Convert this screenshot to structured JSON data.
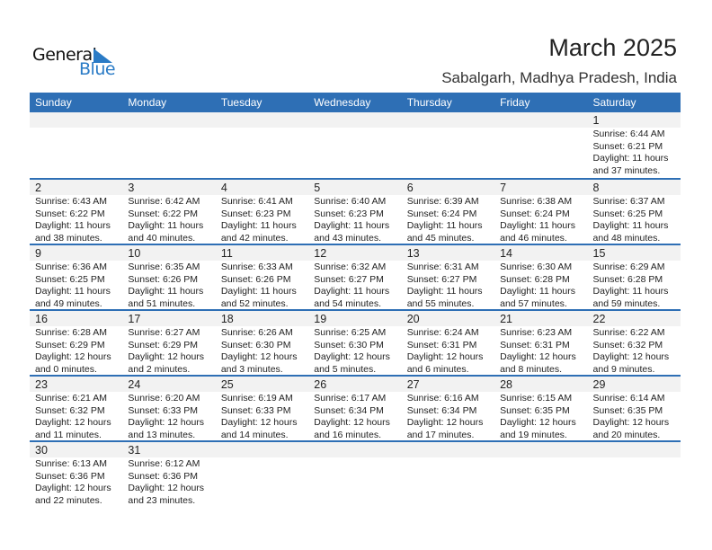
{
  "logo": {
    "text_general": "General",
    "text_blue": "Blue"
  },
  "header": {
    "title": "March 2025",
    "location": "Sabalgarh, Madhya Pradesh, India"
  },
  "colors": {
    "accent": "#2e6fb5",
    "day_strip": "#f2f2f2",
    "logo_blue": "#2a7bc6"
  },
  "weekdays": [
    "Sunday",
    "Monday",
    "Tuesday",
    "Wednesday",
    "Thursday",
    "Friday",
    "Saturday"
  ],
  "weeks": [
    [
      null,
      null,
      null,
      null,
      null,
      null,
      {
        "day": "1",
        "sunrise": "Sunrise: 6:44 AM",
        "sunset": "Sunset: 6:21 PM",
        "daylight": "Daylight: 11 hours",
        "minutes": "and 37 minutes."
      }
    ],
    [
      {
        "day": "2",
        "sunrise": "Sunrise: 6:43 AM",
        "sunset": "Sunset: 6:22 PM",
        "daylight": "Daylight: 11 hours",
        "minutes": "and 38 minutes."
      },
      {
        "day": "3",
        "sunrise": "Sunrise: 6:42 AM",
        "sunset": "Sunset: 6:22 PM",
        "daylight": "Daylight: 11 hours",
        "minutes": "and 40 minutes."
      },
      {
        "day": "4",
        "sunrise": "Sunrise: 6:41 AM",
        "sunset": "Sunset: 6:23 PM",
        "daylight": "Daylight: 11 hours",
        "minutes": "and 42 minutes."
      },
      {
        "day": "5",
        "sunrise": "Sunrise: 6:40 AM",
        "sunset": "Sunset: 6:23 PM",
        "daylight": "Daylight: 11 hours",
        "minutes": "and 43 minutes."
      },
      {
        "day": "6",
        "sunrise": "Sunrise: 6:39 AM",
        "sunset": "Sunset: 6:24 PM",
        "daylight": "Daylight: 11 hours",
        "minutes": "and 45 minutes."
      },
      {
        "day": "7",
        "sunrise": "Sunrise: 6:38 AM",
        "sunset": "Sunset: 6:24 PM",
        "daylight": "Daylight: 11 hours",
        "minutes": "and 46 minutes."
      },
      {
        "day": "8",
        "sunrise": "Sunrise: 6:37 AM",
        "sunset": "Sunset: 6:25 PM",
        "daylight": "Daylight: 11 hours",
        "minutes": "and 48 minutes."
      }
    ],
    [
      {
        "day": "9",
        "sunrise": "Sunrise: 6:36 AM",
        "sunset": "Sunset: 6:25 PM",
        "daylight": "Daylight: 11 hours",
        "minutes": "and 49 minutes."
      },
      {
        "day": "10",
        "sunrise": "Sunrise: 6:35 AM",
        "sunset": "Sunset: 6:26 PM",
        "daylight": "Daylight: 11 hours",
        "minutes": "and 51 minutes."
      },
      {
        "day": "11",
        "sunrise": "Sunrise: 6:33 AM",
        "sunset": "Sunset: 6:26 PM",
        "daylight": "Daylight: 11 hours",
        "minutes": "and 52 minutes."
      },
      {
        "day": "12",
        "sunrise": "Sunrise: 6:32 AM",
        "sunset": "Sunset: 6:27 PM",
        "daylight": "Daylight: 11 hours",
        "minutes": "and 54 minutes."
      },
      {
        "day": "13",
        "sunrise": "Sunrise: 6:31 AM",
        "sunset": "Sunset: 6:27 PM",
        "daylight": "Daylight: 11 hours",
        "minutes": "and 55 minutes."
      },
      {
        "day": "14",
        "sunrise": "Sunrise: 6:30 AM",
        "sunset": "Sunset: 6:28 PM",
        "daylight": "Daylight: 11 hours",
        "minutes": "and 57 minutes."
      },
      {
        "day": "15",
        "sunrise": "Sunrise: 6:29 AM",
        "sunset": "Sunset: 6:28 PM",
        "daylight": "Daylight: 11 hours",
        "minutes": "and 59 minutes."
      }
    ],
    [
      {
        "day": "16",
        "sunrise": "Sunrise: 6:28 AM",
        "sunset": "Sunset: 6:29 PM",
        "daylight": "Daylight: 12 hours",
        "minutes": "and 0 minutes."
      },
      {
        "day": "17",
        "sunrise": "Sunrise: 6:27 AM",
        "sunset": "Sunset: 6:29 PM",
        "daylight": "Daylight: 12 hours",
        "minutes": "and 2 minutes."
      },
      {
        "day": "18",
        "sunrise": "Sunrise: 6:26 AM",
        "sunset": "Sunset: 6:30 PM",
        "daylight": "Daylight: 12 hours",
        "minutes": "and 3 minutes."
      },
      {
        "day": "19",
        "sunrise": "Sunrise: 6:25 AM",
        "sunset": "Sunset: 6:30 PM",
        "daylight": "Daylight: 12 hours",
        "minutes": "and 5 minutes."
      },
      {
        "day": "20",
        "sunrise": "Sunrise: 6:24 AM",
        "sunset": "Sunset: 6:31 PM",
        "daylight": "Daylight: 12 hours",
        "minutes": "and 6 minutes."
      },
      {
        "day": "21",
        "sunrise": "Sunrise: 6:23 AM",
        "sunset": "Sunset: 6:31 PM",
        "daylight": "Daylight: 12 hours",
        "minutes": "and 8 minutes."
      },
      {
        "day": "22",
        "sunrise": "Sunrise: 6:22 AM",
        "sunset": "Sunset: 6:32 PM",
        "daylight": "Daylight: 12 hours",
        "minutes": "and 9 minutes."
      }
    ],
    [
      {
        "day": "23",
        "sunrise": "Sunrise: 6:21 AM",
        "sunset": "Sunset: 6:32 PM",
        "daylight": "Daylight: 12 hours",
        "minutes": "and 11 minutes."
      },
      {
        "day": "24",
        "sunrise": "Sunrise: 6:20 AM",
        "sunset": "Sunset: 6:33 PM",
        "daylight": "Daylight: 12 hours",
        "minutes": "and 13 minutes."
      },
      {
        "day": "25",
        "sunrise": "Sunrise: 6:19 AM",
        "sunset": "Sunset: 6:33 PM",
        "daylight": "Daylight: 12 hours",
        "minutes": "and 14 minutes."
      },
      {
        "day": "26",
        "sunrise": "Sunrise: 6:17 AM",
        "sunset": "Sunset: 6:34 PM",
        "daylight": "Daylight: 12 hours",
        "minutes": "and 16 minutes."
      },
      {
        "day": "27",
        "sunrise": "Sunrise: 6:16 AM",
        "sunset": "Sunset: 6:34 PM",
        "daylight": "Daylight: 12 hours",
        "minutes": "and 17 minutes."
      },
      {
        "day": "28",
        "sunrise": "Sunrise: 6:15 AM",
        "sunset": "Sunset: 6:35 PM",
        "daylight": "Daylight: 12 hours",
        "minutes": "and 19 minutes."
      },
      {
        "day": "29",
        "sunrise": "Sunrise: 6:14 AM",
        "sunset": "Sunset: 6:35 PM",
        "daylight": "Daylight: 12 hours",
        "minutes": "and 20 minutes."
      }
    ],
    [
      {
        "day": "30",
        "sunrise": "Sunrise: 6:13 AM",
        "sunset": "Sunset: 6:36 PM",
        "daylight": "Daylight: 12 hours",
        "minutes": "and 22 minutes."
      },
      {
        "day": "31",
        "sunrise": "Sunrise: 6:12 AM",
        "sunset": "Sunset: 6:36 PM",
        "daylight": "Daylight: 12 hours",
        "minutes": "and 23 minutes."
      },
      null,
      null,
      null,
      null,
      null
    ]
  ]
}
